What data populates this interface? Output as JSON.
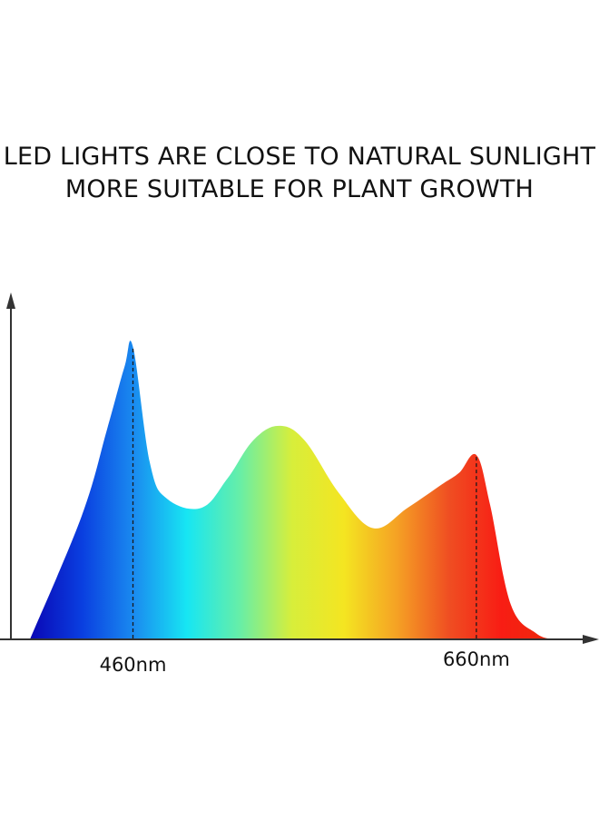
{
  "headline": {
    "line1": "LED LIGHTS ARE CLOSE TO NATURAL SUNLIGHT",
    "line2": "MORE SUITABLE FOR PLANT GROWTH"
  },
  "chart_data": {
    "type": "area",
    "title": "",
    "xlabel": "",
    "ylabel": "",
    "x_unit": "nm",
    "xlim": [
      400,
      710
    ],
    "ylim": [
      0,
      1
    ],
    "grid": false,
    "legend": "none",
    "x": [
      400,
      430,
      445,
      455,
      460,
      470,
      480,
      500,
      515,
      530,
      545,
      560,
      580,
      600,
      620,
      640,
      650,
      660,
      668,
      680,
      695,
      705
    ],
    "values": [
      0.0,
      0.42,
      0.72,
      0.93,
      1.0,
      0.6,
      0.48,
      0.45,
      0.55,
      0.68,
      0.73,
      0.68,
      0.5,
      0.38,
      0.45,
      0.53,
      0.57,
      0.63,
      0.46,
      0.12,
      0.02,
      0.0
    ],
    "marked_peaks": [
      {
        "x": 460,
        "label": "460nm"
      },
      {
        "x": 660,
        "label": "660nm"
      }
    ],
    "fill_gradient": [
      "#0a07b5",
      "#0a3fe0",
      "#1a8cf0",
      "#17e6f3",
      "#66eea8",
      "#d7ee3b",
      "#f4e521",
      "#f5a224",
      "#ef4e22",
      "#f81d14",
      "#ec2a0b"
    ]
  }
}
